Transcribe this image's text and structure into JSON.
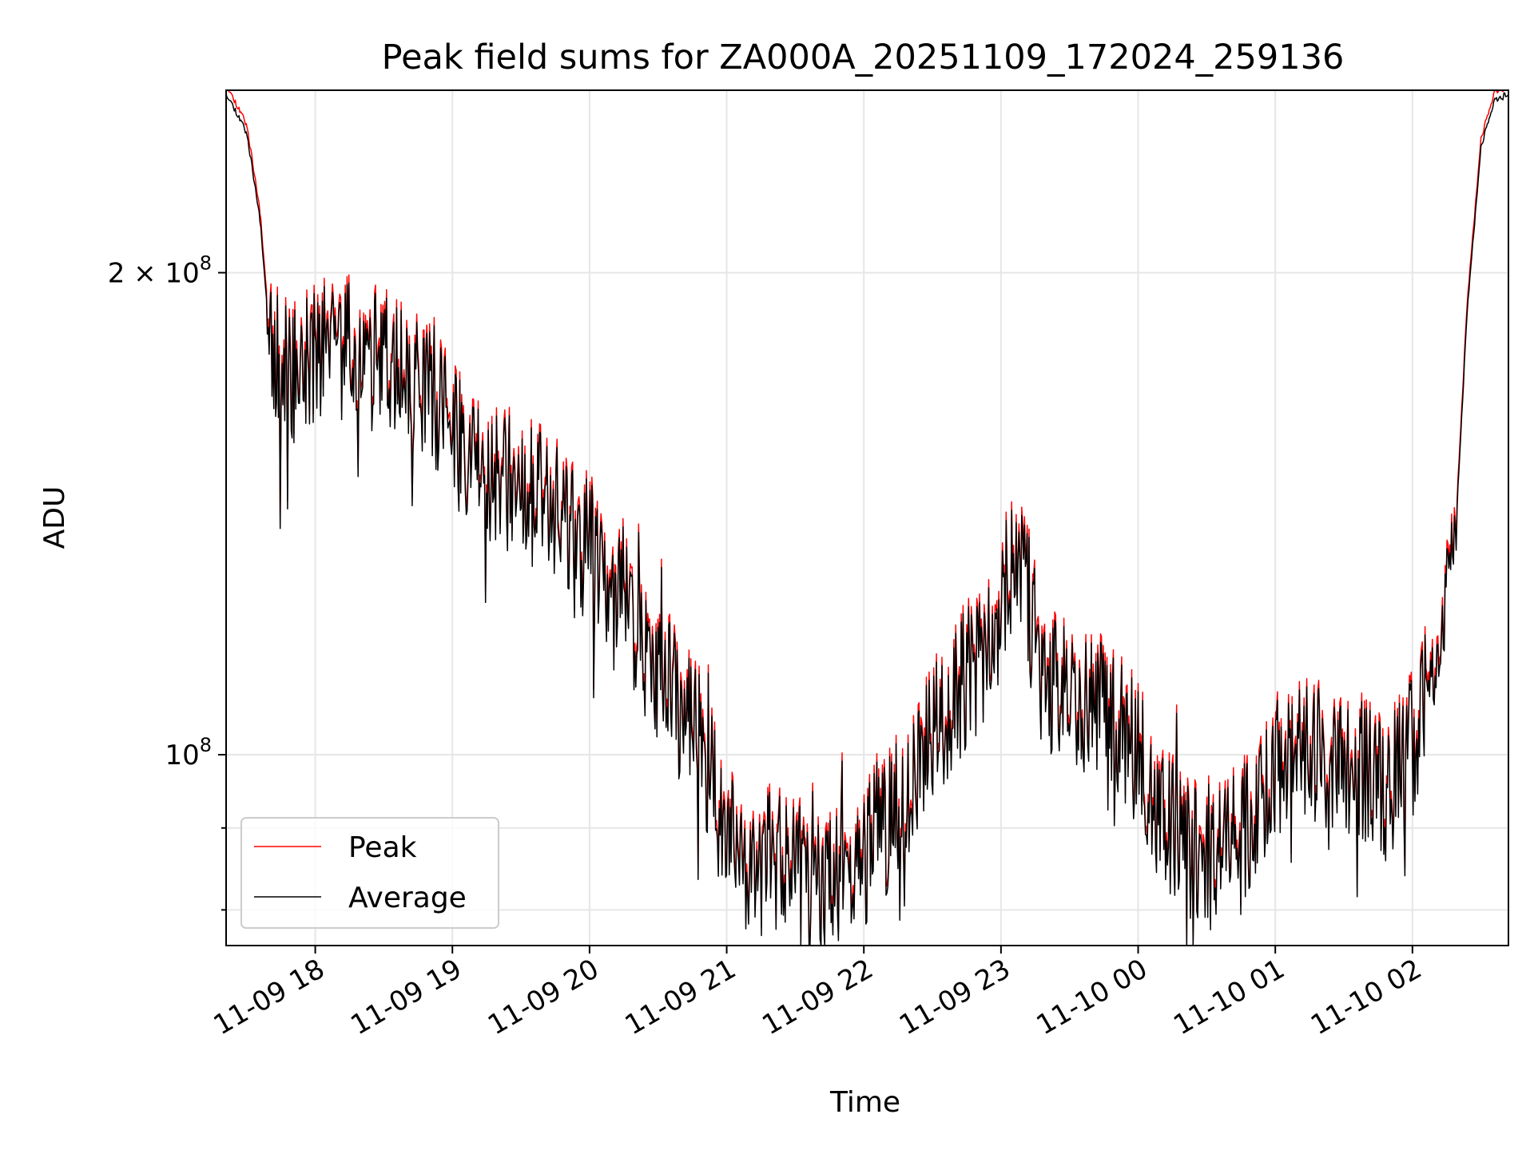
{
  "chart_data": {
    "type": "line",
    "title": "Peak field sums for ZA000A_20251109_172024_259136",
    "xlabel": "Time",
    "ylabel": "ADU",
    "yscale": "log",
    "ylim": [
      76000000,
      260000000
    ],
    "xlim": [
      17.35,
      26.7
    ],
    "x_units": "hours since 2025-11-09 00:00",
    "x_ticks": [
      {
        "value": 18,
        "label": "11-09 18"
      },
      {
        "value": 19,
        "label": "11-09 19"
      },
      {
        "value": 20,
        "label": "11-09 20"
      },
      {
        "value": 21,
        "label": "11-09 21"
      },
      {
        "value": 22,
        "label": "11-09 22"
      },
      {
        "value": 23,
        "label": "11-09 23"
      },
      {
        "value": 24,
        "label": "11-10 00"
      },
      {
        "value": 25,
        "label": "11-10 01"
      },
      {
        "value": 26,
        "label": "11-10 02"
      }
    ],
    "y_major_ticks": [
      {
        "value": 100000000,
        "base": "10",
        "exp": "8",
        "coef": ""
      },
      {
        "value": 200000000,
        "base": "10",
        "exp": "8",
        "coef": "2 × "
      }
    ],
    "y_minor_ticks": [
      80000000,
      90000000
    ],
    "grid": true,
    "legend": {
      "position": "lower-left",
      "entries": [
        "Peak",
        "Average"
      ]
    },
    "series": [
      {
        "name": "Peak",
        "color": "#ff0000",
        "noise": 0.045,
        "offset": 1.012,
        "seed": 11
      },
      {
        "name": "Average",
        "color": "#000000",
        "noise": 0.045,
        "offset": 1.0,
        "seed": 11
      }
    ],
    "trend_x": [
      17.35,
      17.5,
      17.6,
      17.65,
      17.72,
      17.8,
      17.9,
      18.0,
      18.15,
      18.4,
      18.6,
      18.85,
      19.0,
      19.3,
      19.6,
      19.85,
      20.2,
      20.5,
      20.8,
      21.0,
      21.3,
      21.5,
      21.75,
      22.0,
      22.25,
      22.5,
      22.75,
      22.95,
      23.1,
      23.15,
      23.3,
      23.5,
      23.7,
      23.85,
      24.0,
      24.2,
      24.4,
      24.6,
      24.8,
      25.0,
      25.2,
      25.4,
      25.6,
      25.8,
      26.0,
      26.15,
      26.25,
      26.32,
      26.4,
      26.5,
      26.6,
      26.7
    ],
    "trend_y": [
      259000000,
      245000000,
      215000000,
      190000000,
      175000000,
      172000000,
      174000000,
      178000000,
      180000000,
      176000000,
      173000000,
      168000000,
      160000000,
      150000000,
      145000000,
      138000000,
      128000000,
      112000000,
      102000000,
      88000000,
      86000000,
      84000000,
      83000000,
      86000000,
      92000000,
      102000000,
      112000000,
      118000000,
      134000000,
      130000000,
      112000000,
      108000000,
      108000000,
      104000000,
      100000000,
      90000000,
      87000000,
      86000000,
      90000000,
      98000000,
      100000000,
      99000000,
      98000000,
      94000000,
      101000000,
      112000000,
      126000000,
      140000000,
      190000000,
      240000000,
      256000000,
      259000000
    ]
  }
}
